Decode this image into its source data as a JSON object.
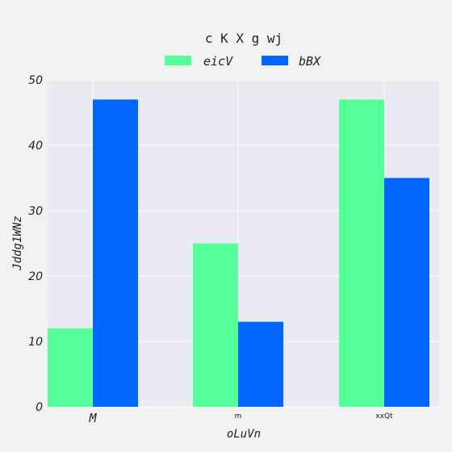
{
  "chart_data": {
    "type": "bar",
    "title": "c K X g wj",
    "xlabel": "oLuVn",
    "ylabel": "Jddg1WNz",
    "categories": [
      "M",
      "m",
      "xxQt"
    ],
    "series": [
      {
        "name": "eicV",
        "values": [
          12,
          25,
          47
        ],
        "color": "#55ff99"
      },
      {
        "name": "bBX",
        "values": [
          47,
          13,
          35
        ],
        "color": "#0066ff"
      }
    ],
    "ylim": [
      0,
      50
    ],
    "yticks": [
      0,
      10,
      20,
      30,
      40,
      50
    ],
    "grid": true,
    "legend_position": "top-center",
    "background_color": "#f2f2f2",
    "plot_background_color": "#eaeaf2"
  }
}
